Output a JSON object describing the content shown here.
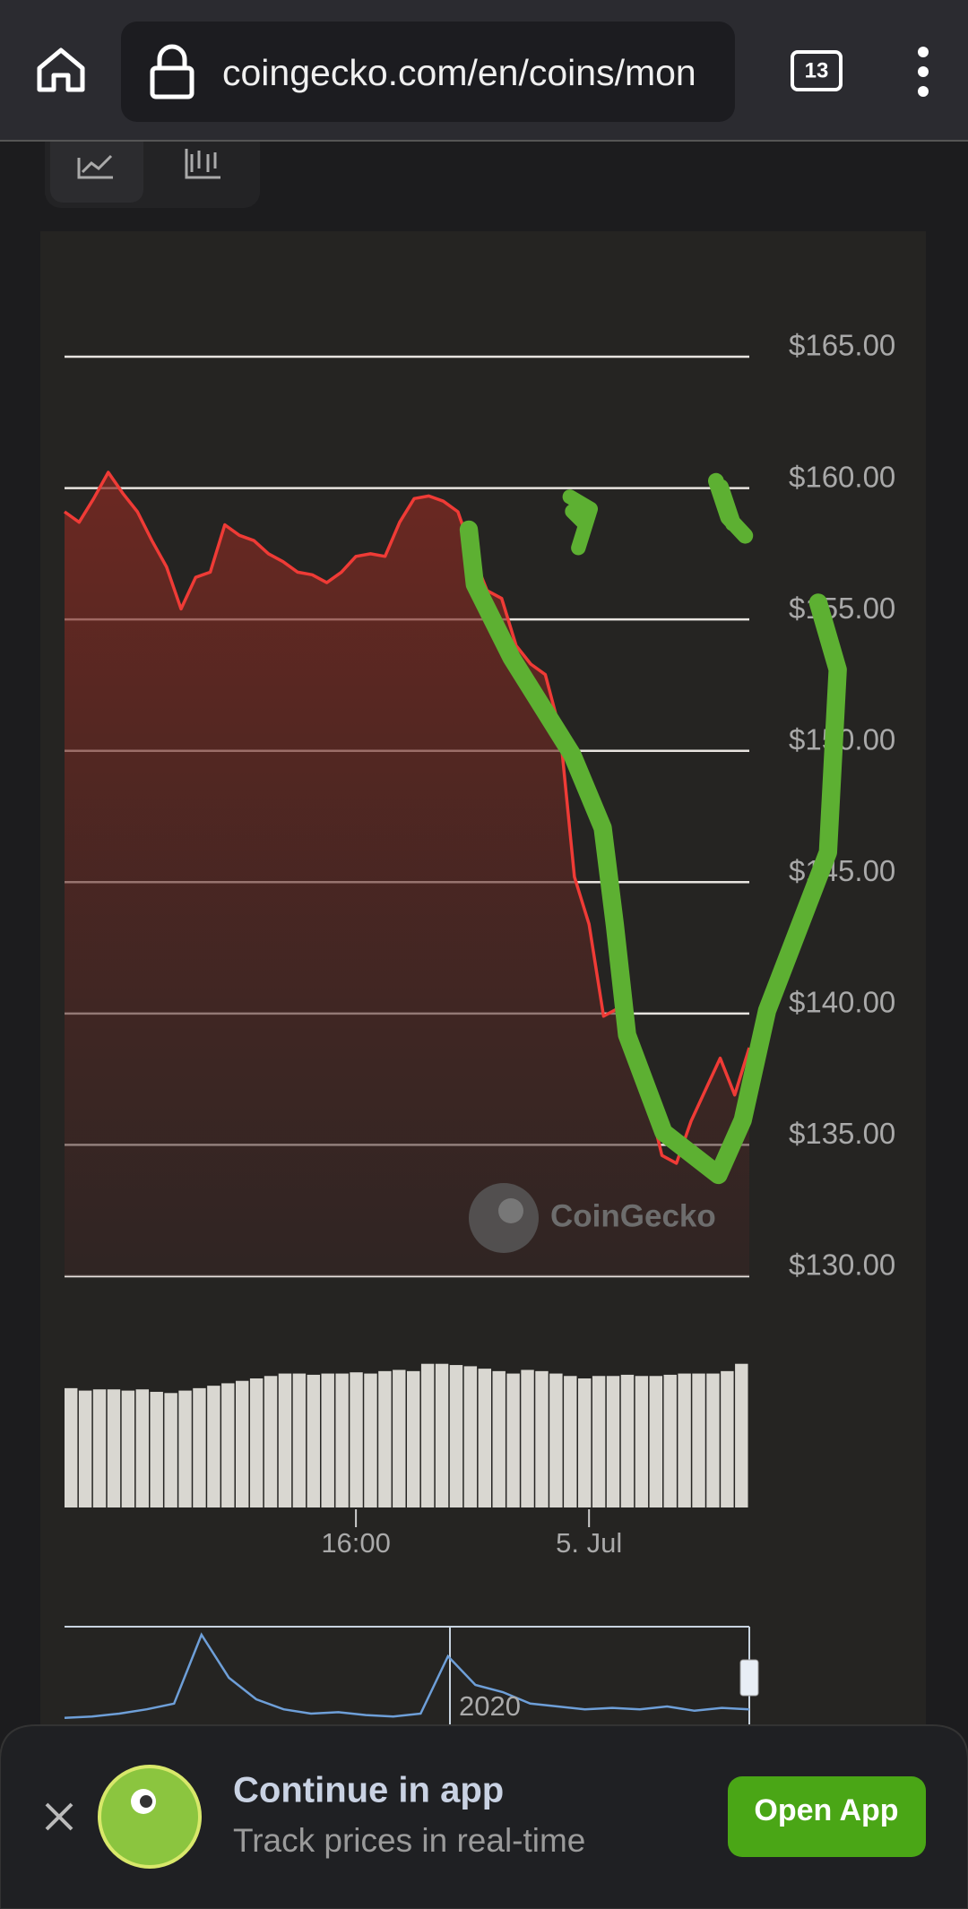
{
  "browser": {
    "url": "coingecko.com/en/coins/mon",
    "tab_count": "13"
  },
  "watermark": "CoinGecko",
  "chart_data": [
    {
      "type": "line",
      "color": "#ef3b36",
      "grid": true,
      "categories": [
        null,
        null,
        null,
        null,
        null,
        null,
        null,
        null,
        null,
        null,
        null,
        null,
        null,
        null,
        null,
        null,
        null,
        null,
        null,
        null,
        "16:00",
        null,
        null,
        null,
        null,
        null,
        null,
        null,
        null,
        null,
        null,
        null,
        null,
        null,
        null,
        null,
        "5. Jul",
        null,
        null,
        null,
        null,
        null,
        null,
        null,
        null,
        null,
        null,
        null
      ],
      "values": [
        159.1,
        158.7,
        159.6,
        160.6,
        159.8,
        159.1,
        158.0,
        157.0,
        155.4,
        156.6,
        156.8,
        158.6,
        158.2,
        158.0,
        157.5,
        157.2,
        156.8,
        156.7,
        156.4,
        156.8,
        157.4,
        157.5,
        157.4,
        158.7,
        159.6,
        159.7,
        159.5,
        159.1,
        157.5,
        156.1,
        155.8,
        154.0,
        153.3,
        152.9,
        150.8,
        145.2,
        143.4,
        139.9,
        140.2,
        138.7,
        136.9,
        134.6,
        134.3,
        135.9,
        137.1,
        138.3,
        136.9,
        138.7
      ],
      "ylim": [
        130,
        165
      ],
      "yticks": [
        {
          "value": 130,
          "label": "$130.00"
        },
        {
          "value": 135,
          "label": "$135.00"
        },
        {
          "value": 140,
          "label": "$140.00"
        },
        {
          "value": 145,
          "label": "$145.00"
        },
        {
          "value": 150,
          "label": "$150.00"
        },
        {
          "value": 155,
          "label": "$155.00"
        },
        {
          "value": 160,
          "label": "$160.00"
        },
        {
          "value": 165,
          "label": "$165.00"
        }
      ]
    },
    {
      "type": "bar",
      "color": "#d9d7d1",
      "values": [
        98,
        96,
        97,
        97,
        96,
        97,
        95,
        94,
        96,
        98,
        100,
        102,
        104,
        106,
        108,
        110,
        110,
        109,
        110,
        110,
        111,
        110,
        112,
        113,
        112,
        118,
        118,
        117,
        116,
        114,
        112,
        110,
        113,
        112,
        110,
        108,
        106,
        108,
        108,
        109,
        108,
        108,
        109,
        110,
        110,
        110,
        112,
        118
      ]
    },
    {
      "type": "line",
      "color": "#6e9fd8",
      "annotations": [
        "2020"
      ],
      "values": [
        2,
        3,
        5,
        8,
        12,
        60,
        30,
        15,
        8,
        5,
        6,
        4,
        3,
        5,
        45,
        25,
        20,
        12,
        10,
        8,
        9,
        8,
        10,
        7,
        9,
        8
      ]
    }
  ],
  "banner": {
    "title": "Continue in app",
    "subtitle": "Track prices in real-time",
    "button": "Open App"
  }
}
